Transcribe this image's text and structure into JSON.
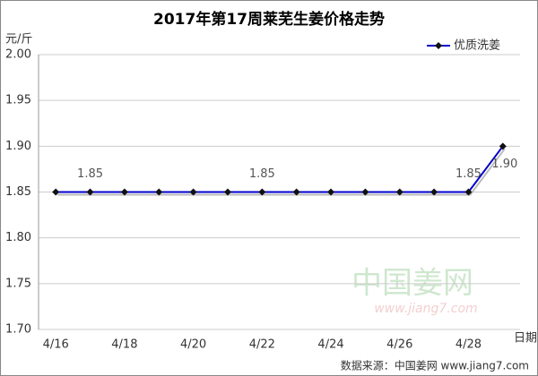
{
  "chart_data": {
    "type": "line",
    "title": "2017年第17周莱芜生姜价格走势",
    "y_label": "元/斤",
    "x_label": "日期",
    "categories": [
      "4/16",
      null,
      "4/18",
      null,
      "4/20",
      null,
      "4/22",
      null,
      "4/24",
      null,
      "4/26",
      null,
      "4/28",
      null
    ],
    "series": [
      {
        "name": "优质洗姜",
        "color": "#0000cc",
        "values": [
          1.85,
          1.85,
          1.85,
          1.85,
          1.85,
          1.85,
          1.85,
          1.85,
          1.85,
          1.85,
          1.85,
          1.85,
          1.85,
          1.9
        ],
        "value_labels": [
          null,
          "1.85",
          null,
          null,
          null,
          null,
          "1.85",
          null,
          null,
          null,
          null,
          null,
          "1.85",
          "1.90"
        ]
      }
    ],
    "ylim": [
      1.7,
      2.0
    ],
    "yticks": [
      {
        "value": 1.7,
        "label": "1.70"
      },
      1.75,
      {
        "value": 1.8,
        "label": "1.80"
      },
      1.85,
      {
        "value": 1.9,
        "label": "1.90"
      },
      1.95,
      {
        "value": 2.0,
        "label": "2.00"
      }
    ],
    "grid": true,
    "legend": "upper right",
    "watermark": [
      "中国姜网",
      "www.jiang7.com"
    ],
    "source": "数据来源：中国姜网 www.jiang7.com"
  }
}
